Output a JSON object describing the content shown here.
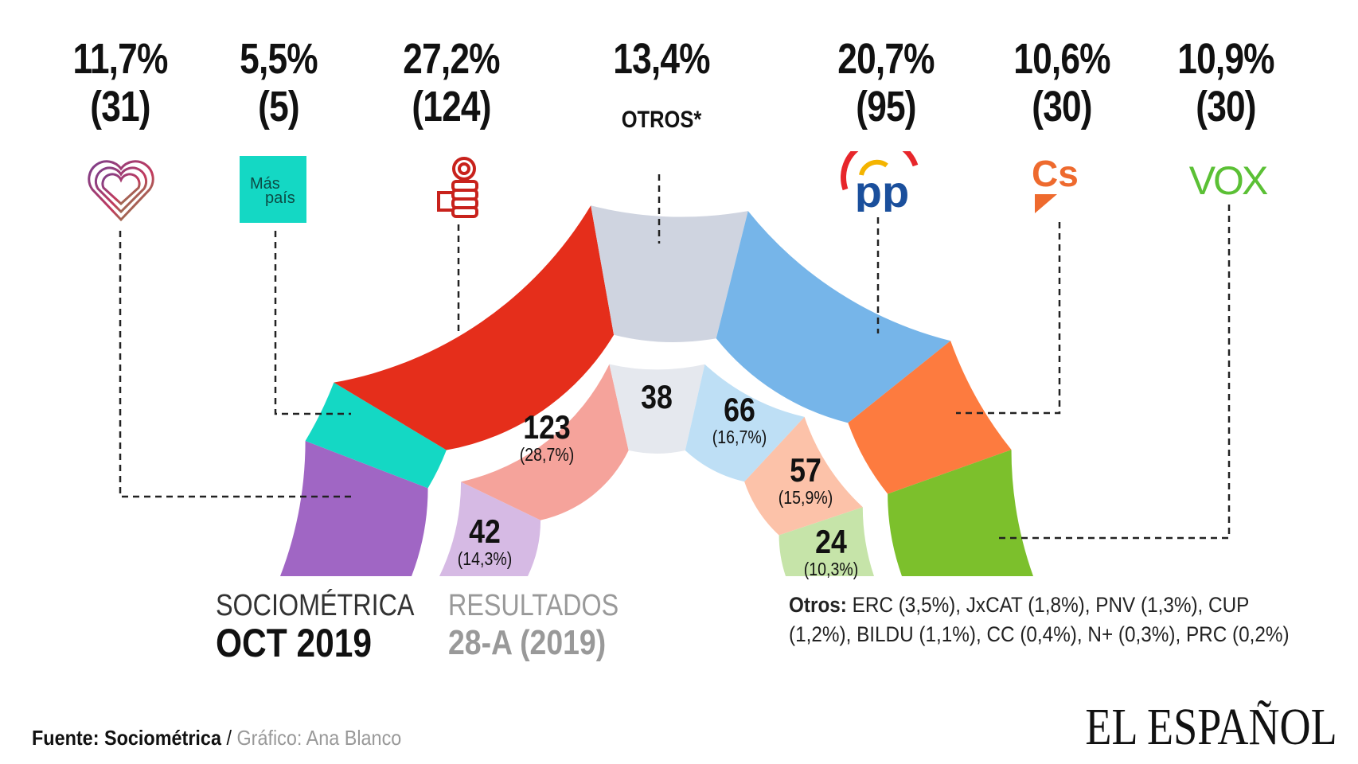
{
  "chart_data": {
    "type": "pie",
    "subtype": "semi-donut (two concentric rings)",
    "outer_ring": {
      "label_line1": "SOCIOMÉTRICA",
      "label_line2": "OCT 2019",
      "parties": [
        {
          "name": "Unidas Podemos",
          "logo": "heart-logo",
          "pct": 11.7,
          "pct_label": "11,7%",
          "seats_label": "(31)",
          "color": "#a066c4"
        },
        {
          "name": "Más País",
          "logo": "mas-pais-logo",
          "logo_text_1": "Más",
          "logo_text_2": "país",
          "pct": 5.5,
          "pct_label": "5,5%",
          "seats_label": "(5)",
          "color": "#14d8c4"
        },
        {
          "name": "PSOE",
          "logo": "rose-fist-logo",
          "pct": 27.2,
          "pct_label": "27,2%",
          "seats_label": "(124)",
          "color": "#e52e1b"
        },
        {
          "name": "Otros",
          "logo": "",
          "pct": 13.4,
          "pct_label": "13,4%",
          "tag": "OTROS*",
          "color": "#cfd4e0"
        },
        {
          "name": "PP",
          "logo": "pp-logo",
          "logo_text": "pp",
          "pct": 20.7,
          "pct_label": "20,7%",
          "seats_label": "(95)",
          "color": "#76b5e9"
        },
        {
          "name": "Cs",
          "logo": "cs-logo",
          "logo_text": "Cs",
          "pct": 10.6,
          "pct_label": "10,6%",
          "seats_label": "(30)",
          "color": "#fd7b3f"
        },
        {
          "name": "Vox",
          "logo": "vox-logo",
          "logo_text": "VOX",
          "pct": 10.9,
          "pct_label": "10,9%",
          "seats_label": "(30)",
          "color": "#7cc02c"
        }
      ]
    },
    "inner_ring": {
      "label_line1": "RESULTADOS",
      "label_line2": "28-A (2019)",
      "parties": [
        {
          "name": "Unidas Podemos",
          "seats": 42,
          "seats_label": "42",
          "pct": 14.3,
          "pct_label": "(14,3%)",
          "color": "#d6bae4"
        },
        {
          "name": "PSOE",
          "seats": 123,
          "seats_label": "123",
          "pct": 28.7,
          "pct_label": "(28,7%)",
          "color": "#f5a39b"
        },
        {
          "name": "Otros",
          "seats": 38,
          "seats_label": "38",
          "pct": 14.1,
          "pct_label": "",
          "color": "#e5e8ee"
        },
        {
          "name": "PP",
          "seats": 66,
          "seats_label": "66",
          "pct": 16.7,
          "pct_label": "(16,7%)",
          "color": "#bedff5"
        },
        {
          "name": "Cs",
          "seats": 57,
          "seats_label": "57",
          "pct": 15.9,
          "pct_label": "(15,9%)",
          "color": "#fcc2a9"
        },
        {
          "name": "Vox",
          "seats": 24,
          "seats_label": "24",
          "pct": 10.3,
          "pct_label": "(10,3%)",
          "color": "#c6e4a9"
        }
      ]
    }
  },
  "otros_note": {
    "label": "Otros:",
    "text": " ERC (3,5%), JxCAT (1,8%), PNV (1,3%), CUP (1,2%), BILDU (1,1%), CC (0,4%), N+ (0,3%), PRC (0,2%)"
  },
  "footer": {
    "source_label": "Fuente: Sociométrica",
    "separator": " / ",
    "credit": "Gráfico: Ana Blanco",
    "brand": "EL ESPAÑOL"
  }
}
